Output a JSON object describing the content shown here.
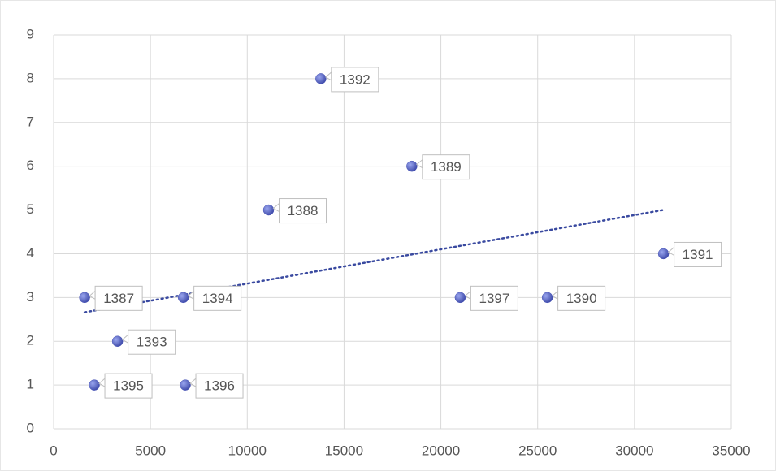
{
  "chart_data": {
    "type": "scatter",
    "x": [
      1600,
      11100,
      18500,
      25500,
      31500,
      13800,
      3300,
      6700,
      2100,
      6800,
      21000
    ],
    "y": [
      3,
      5,
      6,
      3,
      4,
      8,
      2,
      3,
      1,
      1,
      3
    ],
    "labels": [
      "1387",
      "1388",
      "1389",
      "1390",
      "1391",
      "1392",
      "1393",
      "1394",
      "1395",
      "1396",
      "1397"
    ],
    "color": "#4a56b8",
    "trendline": "linear",
    "trendline_color": "#3a4aa0",
    "xlim": [
      0,
      35000
    ],
    "xticks": [
      0,
      5000,
      10000,
      15000,
      20000,
      25000,
      30000,
      35000
    ],
    "ylim": [
      0,
      9
    ],
    "yticks": [
      0,
      1,
      2,
      3,
      4,
      5,
      6,
      7,
      8,
      9
    ],
    "grid": true
  }
}
